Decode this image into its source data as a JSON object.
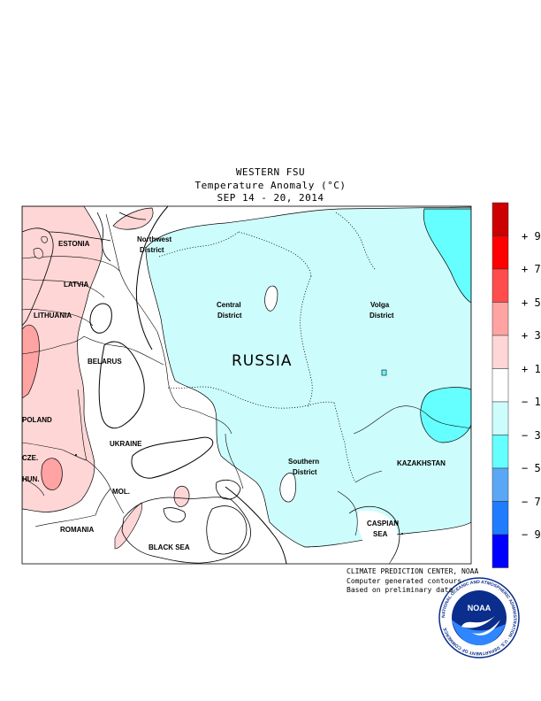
{
  "header": {
    "region": "WESTERN FSU",
    "subtitle": "Temperature Anomaly (°C)",
    "dates": "SEP 14 - 20, 2014"
  },
  "map_labels": {
    "estonia": "ESTONIA",
    "latvia": "LATVIA",
    "lithuania": "LITHUANIA",
    "belarus": "BELARUS",
    "poland": "POLAND",
    "ukraine": "UKRAINE",
    "czech": "CZE.",
    "hungary": "HUN.",
    "moldova": "MOL.",
    "romania": "ROMANIA",
    "black_sea": "BLACK SEA",
    "russia": "RUSSIA",
    "northwest_1": "Northwest",
    "northwest_2": "District",
    "central_1": "Central",
    "central_2": "District",
    "volga_1": "Volga",
    "volga_2": "District",
    "southern_1": "Southern",
    "southern_2": "District",
    "kazakhstan": "KAZAKHSTAN",
    "caspian_1": "CASPIAN",
    "caspian_2": "SEA"
  },
  "legend": {
    "colors": [
      "#cc0000",
      "#ff0000",
      "#ff4d4d",
      "#ffa3a3",
      "#ffd6d6",
      "#ffffff",
      "#cdfcfc",
      "#66ffff",
      "#5aa8f5",
      "#1f7cff",
      "#0000ff"
    ],
    "labels": [
      "+ 9",
      "+ 7",
      "+ 5",
      "+ 3",
      "+ 1",
      "− 1",
      "− 3",
      "− 5",
      "− 7",
      "− 9"
    ]
  },
  "credits": {
    "line1": "CLIMATE PREDICTION CENTER, NOAA",
    "line2": "Computer generated contours",
    "line3": "Based on preliminary data"
  },
  "logo": {
    "center_text": "NOAA",
    "ring_text": "NATIONAL OCEANIC AND ATMOSPHERIC ADMINISTRATION · U.S. DEPARTMENT OF COMMERCE"
  }
}
